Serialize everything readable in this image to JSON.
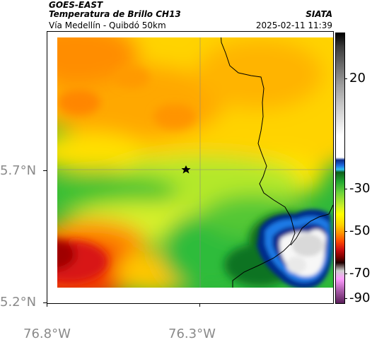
{
  "header": {
    "satellite": "GOES-EAST",
    "product": "Temperatura de Brillo CH13",
    "subtitle": "Vía Medellín - Quibdó 50km",
    "organization": "SIATA",
    "datetime": "2025-02-11 11:39"
  },
  "map": {
    "lat_labels": [
      "5.7°N",
      "5.2°N"
    ],
    "lon_labels": [
      "76.8°W",
      "76.3°W"
    ],
    "marker_icon": "star-icon"
  },
  "colorbar": {
    "labels": [
      "20",
      "-30",
      "-50",
      "-70",
      "-90"
    ]
  }
}
